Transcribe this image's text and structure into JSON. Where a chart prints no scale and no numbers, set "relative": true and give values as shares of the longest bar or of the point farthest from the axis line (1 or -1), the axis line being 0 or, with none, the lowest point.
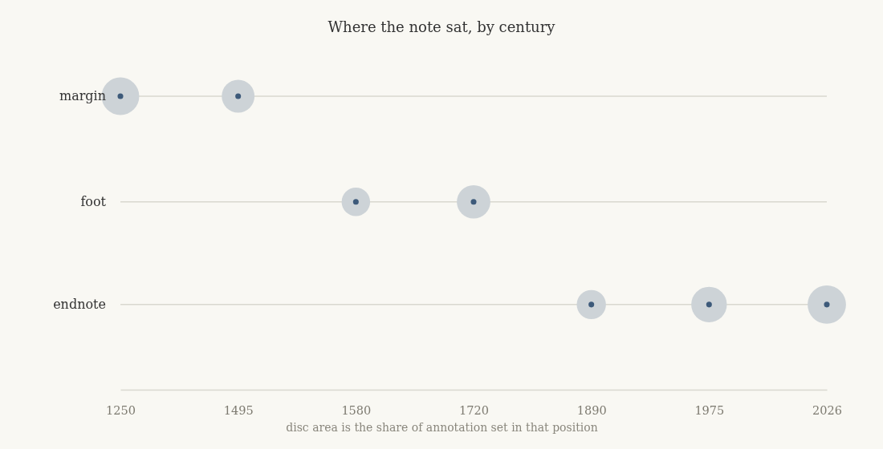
{
  "chart_data": {
    "type": "bubble",
    "title": "Where the note sat, by century",
    "xlabel": "disc area is the share of annotation set in that position",
    "categories": [
      "1250",
      "1495",
      "1580",
      "1720",
      "1890",
      "1975",
      "2026"
    ],
    "relative": true,
    "series": [
      {
        "type": "bubble",
        "color": "#cdd3d7",
        "values": [
          1,
          1,
          0.64,
          0.64,
          0.29,
          0.29,
          0.29
        ],
        "sizes": [
          0.96,
          0.73,
          0.55,
          0.76,
          0.58,
          0.86,
          1
        ]
      },
      {
        "type": "scatter",
        "color": "#3d5a7a",
        "values": [
          1,
          1,
          0.64,
          0.64,
          0.29,
          0.29,
          0.29
        ]
      }
    ],
    "ref_lines": [
      {
        "axis": "y",
        "value": 1,
        "label": "margin",
        "color": "#d9d8cf"
      },
      {
        "axis": "y",
        "value": 0.64,
        "label": "foot",
        "color": "#d9d8cf"
      },
      {
        "axis": "y",
        "value": 0.29,
        "label": "endnote",
        "color": "#d9d8cf"
      }
    ],
    "marker": "circle"
  }
}
